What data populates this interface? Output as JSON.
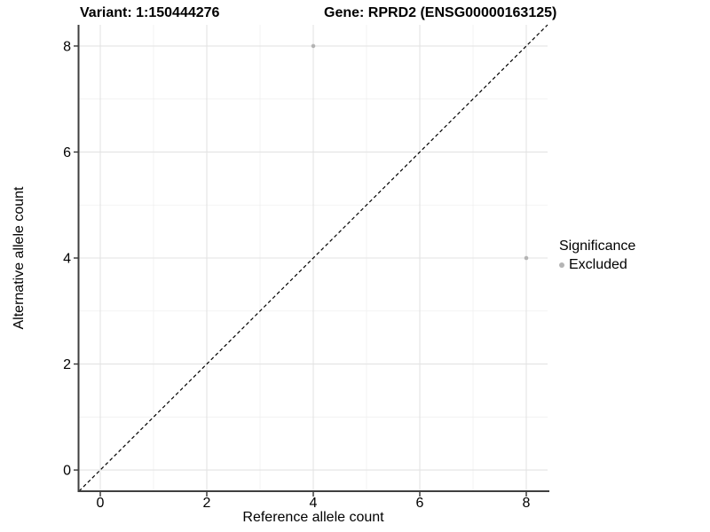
{
  "header": {
    "variant_title": "Variant: 1:150444276",
    "gene_title": "Gene: RPRD2 (ENSG00000163125)"
  },
  "chart_data": {
    "type": "scatter",
    "xlabel": "Reference allele count",
    "ylabel": "Alternative allele count",
    "xlim": [
      -0.4,
      8.4
    ],
    "ylim": [
      -0.4,
      8.4
    ],
    "x_ticks": [
      0,
      2,
      4,
      6,
      8
    ],
    "y_ticks": [
      0,
      2,
      4,
      6,
      8
    ],
    "x_minor_ticks": [
      1,
      3,
      5,
      7
    ],
    "y_minor_ticks": [
      1,
      3,
      5,
      7
    ],
    "grid": true,
    "legend_position": "right",
    "reference_line": {
      "slope": 1,
      "intercept": 0,
      "style": "dashed",
      "color": "#000000"
    },
    "series": [
      {
        "name": "Excluded",
        "color": "#b4b4b4",
        "points": [
          {
            "x": 4,
            "y": 8
          },
          {
            "x": 8,
            "y": 4
          }
        ]
      }
    ],
    "legend": {
      "title": "Significance",
      "items": [
        {
          "label": "Excluded",
          "color": "#b4b4b4"
        }
      ]
    },
    "colors": {
      "background": "#ffffff",
      "grid_major": "#e3e3e3",
      "grid_minor": "#f0f0f0",
      "axis_line": "#3f3f3f",
      "tick_mark": "#333333",
      "text": "#000000"
    }
  }
}
